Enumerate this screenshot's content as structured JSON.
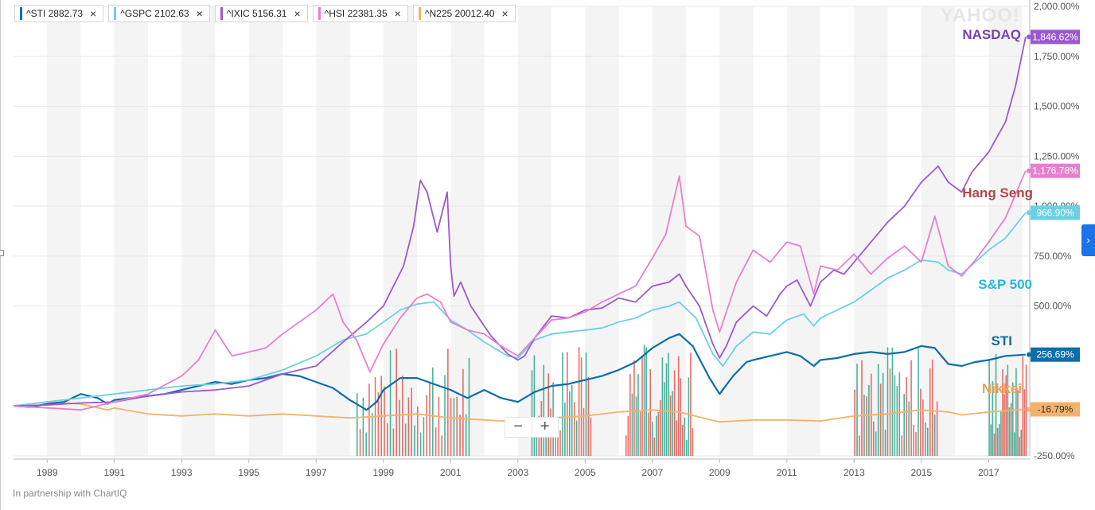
{
  "legend": [
    {
      "label": "^STI 2882.73",
      "color": "#0e6ea8"
    },
    {
      "label": "^GSPC 2102.63",
      "color": "#6ccfe6"
    },
    {
      "label": "^IXIC 5156.31",
      "color": "#9b59d0"
    },
    {
      "label": "^HSI 22381.35",
      "color": "#e77fcf"
    },
    {
      "label": "^N225 20012.40",
      "color": "#f4b26b"
    }
  ],
  "close_symbol": "×",
  "watermark": "YAHOO!",
  "footer": "In partnership with ChartIQ",
  "zoom": {
    "minus": "−",
    "plus": "+"
  },
  "expand_icon": "›",
  "chart_data": {
    "type": "line",
    "ylim": [
      -250,
      2000
    ],
    "y_ticks": [
      "-250.00%",
      "500.00%",
      "750.00%",
      "1,000.00%",
      "1,250.00%",
      "1,500.00%",
      "1,750.00%",
      "2,000.00%"
    ],
    "y_tick_values": [
      -250,
      500,
      750,
      1000,
      1250,
      1500,
      1750,
      2000
    ],
    "xlim": [
      1988.0,
      2018.2
    ],
    "x_ticks": [
      "1989",
      "1991",
      "1993",
      "1995",
      "1997",
      "1999",
      "2001",
      "2003",
      "2005",
      "2007",
      "2009",
      "2011",
      "2013",
      "2015",
      "2017"
    ],
    "x_tick_values": [
      1989,
      1991,
      1993,
      1995,
      1997,
      1999,
      2001,
      2003,
      2005,
      2007,
      2009,
      2011,
      2013,
      2015,
      2017
    ],
    "series": [
      {
        "name": "^IXIC",
        "color": "#9b59d0",
        "end_label": "1,846.62%",
        "annotation": "NASDAQ",
        "points": [
          [
            1988.0,
            0
          ],
          [
            1989,
            5
          ],
          [
            1990,
            15
          ],
          [
            1991,
            20
          ],
          [
            1992,
            50
          ],
          [
            1993,
            70
          ],
          [
            1994,
            80
          ],
          [
            1995,
            100
          ],
          [
            1996,
            160
          ],
          [
            1997,
            200
          ],
          [
            1997.8,
            320
          ],
          [
            1998.5,
            420
          ],
          [
            1999,
            500
          ],
          [
            1999.6,
            700
          ],
          [
            1999.9,
            900
          ],
          [
            2000.1,
            1130
          ],
          [
            2000.3,
            1070
          ],
          [
            2000.6,
            870
          ],
          [
            2000.9,
            1070
          ],
          [
            2001.0,
            700
          ],
          [
            2001.1,
            550
          ],
          [
            2001.3,
            620
          ],
          [
            2001.6,
            500
          ],
          [
            2001.8,
            450
          ],
          [
            2002.2,
            350
          ],
          [
            2002.7,
            260
          ],
          [
            2003.0,
            230
          ],
          [
            2003.2,
            250
          ],
          [
            2003.5,
            340
          ],
          [
            2004,
            450
          ],
          [
            2004.5,
            440
          ],
          [
            2005,
            480
          ],
          [
            2005.5,
            490
          ],
          [
            2006,
            540
          ],
          [
            2006.5,
            520
          ],
          [
            2007,
            600
          ],
          [
            2007.5,
            620
          ],
          [
            2007.8,
            660
          ],
          [
            2008.0,
            600
          ],
          [
            2008.4,
            500
          ],
          [
            2008.8,
            310
          ],
          [
            2009.0,
            240
          ],
          [
            2009.2,
            300
          ],
          [
            2009.5,
            420
          ],
          [
            2010,
            500
          ],
          [
            2010.4,
            450
          ],
          [
            2010.8,
            560
          ],
          [
            2011,
            600
          ],
          [
            2011.3,
            630
          ],
          [
            2011.7,
            500
          ],
          [
            2012,
            620
          ],
          [
            2012.4,
            680
          ],
          [
            2012.7,
            660
          ],
          [
            2013,
            720
          ],
          [
            2013.5,
            820
          ],
          [
            2014,
            920
          ],
          [
            2014.5,
            1000
          ],
          [
            2015,
            1120
          ],
          [
            2015.5,
            1200
          ],
          [
            2015.8,
            1120
          ],
          [
            2016.2,
            1070
          ],
          [
            2016.5,
            1170
          ],
          [
            2017,
            1270
          ],
          [
            2017.5,
            1420
          ],
          [
            2017.8,
            1600
          ],
          [
            2018.1,
            1847
          ]
        ]
      },
      {
        "name": "^HSI",
        "color": "#e77fcf",
        "end_label": "1,176.78%",
        "annotation": "Hang Seng",
        "points": [
          [
            1988.0,
            0
          ],
          [
            1989,
            -10
          ],
          [
            1990,
            -20
          ],
          [
            1991,
            20
          ],
          [
            1992,
            60
          ],
          [
            1993,
            150
          ],
          [
            1993.5,
            230
          ],
          [
            1994,
            380
          ],
          [
            1994.5,
            250
          ],
          [
            1995,
            270
          ],
          [
            1995.5,
            290
          ],
          [
            1996,
            360
          ],
          [
            1996.5,
            420
          ],
          [
            1997,
            480
          ],
          [
            1997.5,
            560
          ],
          [
            1997.8,
            420
          ],
          [
            1998.2,
            330
          ],
          [
            1998.6,
            170
          ],
          [
            1999,
            310
          ],
          [
            1999.5,
            440
          ],
          [
            2000,
            540
          ],
          [
            2000.3,
            560
          ],
          [
            2000.7,
            520
          ],
          [
            2001,
            420
          ],
          [
            2001.5,
            380
          ],
          [
            2002,
            360
          ],
          [
            2002.5,
            300
          ],
          [
            2003,
            250
          ],
          [
            2003.5,
            340
          ],
          [
            2004,
            430
          ],
          [
            2004.5,
            440
          ],
          [
            2005,
            470
          ],
          [
            2005.5,
            520
          ],
          [
            2006,
            560
          ],
          [
            2006.5,
            600
          ],
          [
            2007,
            740
          ],
          [
            2007.4,
            860
          ],
          [
            2007.8,
            1150
          ],
          [
            2008.0,
            900
          ],
          [
            2008.4,
            850
          ],
          [
            2008.8,
            480
          ],
          [
            2009,
            370
          ],
          [
            2009.5,
            620
          ],
          [
            2010,
            780
          ],
          [
            2010.5,
            720
          ],
          [
            2011,
            820
          ],
          [
            2011.4,
            800
          ],
          [
            2011.8,
            560
          ],
          [
            2012,
            700
          ],
          [
            2012.5,
            680
          ],
          [
            2013,
            760
          ],
          [
            2013.5,
            660
          ],
          [
            2014,
            740
          ],
          [
            2014.5,
            800
          ],
          [
            2015,
            720
          ],
          [
            2015.4,
            950
          ],
          [
            2015.8,
            700
          ],
          [
            2016.2,
            650
          ],
          [
            2016.6,
            730
          ],
          [
            2017,
            820
          ],
          [
            2017.5,
            940
          ],
          [
            2018.1,
            1177
          ]
        ]
      },
      {
        "name": "^GSPC",
        "color": "#6ccfe6",
        "end_label": "966.90%",
        "annotation": "S&P 500",
        "points": [
          [
            1988.0,
            0
          ],
          [
            1989,
            20
          ],
          [
            1990,
            40
          ],
          [
            1991,
            60
          ],
          [
            1992,
            80
          ],
          [
            1993,
            100
          ],
          [
            1994,
            110
          ],
          [
            1995,
            130
          ],
          [
            1996,
            180
          ],
          [
            1997,
            250
          ],
          [
            1997.8,
            330
          ],
          [
            1998.5,
            360
          ],
          [
            1999,
            420
          ],
          [
            1999.5,
            480
          ],
          [
            2000,
            510
          ],
          [
            2000.5,
            520
          ],
          [
            2001,
            430
          ],
          [
            2001.5,
            380
          ],
          [
            2002,
            320
          ],
          [
            2002.7,
            250
          ],
          [
            2003,
            240
          ],
          [
            2003.5,
            330
          ],
          [
            2004,
            360
          ],
          [
            2004.5,
            370
          ],
          [
            2005,
            380
          ],
          [
            2005.5,
            390
          ],
          [
            2006,
            420
          ],
          [
            2006.5,
            440
          ],
          [
            2007,
            480
          ],
          [
            2007.5,
            500
          ],
          [
            2007.8,
            520
          ],
          [
            2008.3,
            440
          ],
          [
            2008.8,
            260
          ],
          [
            2009.1,
            200
          ],
          [
            2009.5,
            300
          ],
          [
            2010,
            370
          ],
          [
            2010.5,
            360
          ],
          [
            2011,
            430
          ],
          [
            2011.5,
            460
          ],
          [
            2011.8,
            400
          ],
          [
            2012,
            440
          ],
          [
            2012.5,
            480
          ],
          [
            2013,
            520
          ],
          [
            2013.5,
            580
          ],
          [
            2014,
            640
          ],
          [
            2014.5,
            680
          ],
          [
            2015,
            730
          ],
          [
            2015.5,
            720
          ],
          [
            2015.8,
            680
          ],
          [
            2016.2,
            660
          ],
          [
            2016.6,
            720
          ],
          [
            2017,
            780
          ],
          [
            2017.5,
            840
          ],
          [
            2018.1,
            967
          ]
        ]
      },
      {
        "name": "^STI",
        "color": "#0e6ea8",
        "end_label": "256.69%",
        "annotation": "STI",
        "points": [
          [
            1988.0,
            0
          ],
          [
            1988.5,
            -5
          ],
          [
            1989,
            10
          ],
          [
            1989.5,
            20
          ],
          [
            1990,
            60
          ],
          [
            1990.5,
            40
          ],
          [
            1990.8,
            10
          ],
          [
            1991,
            30
          ],
          [
            1991.5,
            40
          ],
          [
            1992,
            50
          ],
          [
            1992.5,
            60
          ],
          [
            1993,
            80
          ],
          [
            1993.5,
            100
          ],
          [
            1994,
            120
          ],
          [
            1994.5,
            110
          ],
          [
            1995,
            130
          ],
          [
            1995.5,
            140
          ],
          [
            1996,
            160
          ],
          [
            1996.5,
            150
          ],
          [
            1997,
            120
          ],
          [
            1997.5,
            90
          ],
          [
            1998,
            30
          ],
          [
            1998.5,
            -20
          ],
          [
            1998.8,
            20
          ],
          [
            1999,
            80
          ],
          [
            1999.5,
            140
          ],
          [
            2000,
            140
          ],
          [
            2000.5,
            110
          ],
          [
            2001,
            80
          ],
          [
            2001.5,
            40
          ],
          [
            2002,
            80
          ],
          [
            2002.5,
            40
          ],
          [
            2003,
            20
          ],
          [
            2003.5,
            70
          ],
          [
            2004,
            100
          ],
          [
            2004.5,
            110
          ],
          [
            2005,
            130
          ],
          [
            2005.5,
            150
          ],
          [
            2006,
            180
          ],
          [
            2006.5,
            220
          ],
          [
            2007,
            290
          ],
          [
            2007.5,
            340
          ],
          [
            2007.8,
            360
          ],
          [
            2008.2,
            300
          ],
          [
            2008.7,
            140
          ],
          [
            2009,
            60
          ],
          [
            2009.4,
            150
          ],
          [
            2009.8,
            220
          ],
          [
            2010,
            230
          ],
          [
            2010.5,
            250
          ],
          [
            2011,
            270
          ],
          [
            2011.4,
            250
          ],
          [
            2011.8,
            200
          ],
          [
            2012,
            230
          ],
          [
            2012.5,
            240
          ],
          [
            2013,
            260
          ],
          [
            2013.5,
            270
          ],
          [
            2014,
            260
          ],
          [
            2014.5,
            270
          ],
          [
            2015,
            300
          ],
          [
            2015.4,
            290
          ],
          [
            2015.8,
            210
          ],
          [
            2016.2,
            200
          ],
          [
            2016.6,
            220
          ],
          [
            2017,
            230
          ],
          [
            2017.5,
            250
          ],
          [
            2018.1,
            257
          ]
        ]
      },
      {
        "name": "^N225",
        "color": "#f4b26b",
        "end_label": "-16.79%",
        "annotation": "Nikkei",
        "points": [
          [
            1988.0,
            0
          ],
          [
            1989,
            20
          ],
          [
            1990,
            10
          ],
          [
            1990.8,
            -20
          ],
          [
            1991,
            -10
          ],
          [
            1992,
            -40
          ],
          [
            1993,
            -50
          ],
          [
            1994,
            -40
          ],
          [
            1995,
            -50
          ],
          [
            1996,
            -40
          ],
          [
            1997,
            -50
          ],
          [
            1998,
            -60
          ],
          [
            1999,
            -50
          ],
          [
            2000,
            -40
          ],
          [
            2001,
            -60
          ],
          [
            2002,
            -70
          ],
          [
            2003,
            -80
          ],
          [
            2004,
            -60
          ],
          [
            2005,
            -50
          ],
          [
            2006,
            -30
          ],
          [
            2007,
            -20
          ],
          [
            2007.8,
            -30
          ],
          [
            2008.5,
            -60
          ],
          [
            2009,
            -80
          ],
          [
            2010,
            -70
          ],
          [
            2011,
            -70
          ],
          [
            2012,
            -75
          ],
          [
            2013,
            -50
          ],
          [
            2014,
            -40
          ],
          [
            2015,
            -20
          ],
          [
            2015.8,
            -30
          ],
          [
            2016.2,
            -45
          ],
          [
            2017,
            -30
          ],
          [
            2018.1,
            -17
          ]
        ]
      }
    ],
    "volume_bars": {
      "green": "#2aa58a",
      "red": "#e2554f"
    }
  }
}
